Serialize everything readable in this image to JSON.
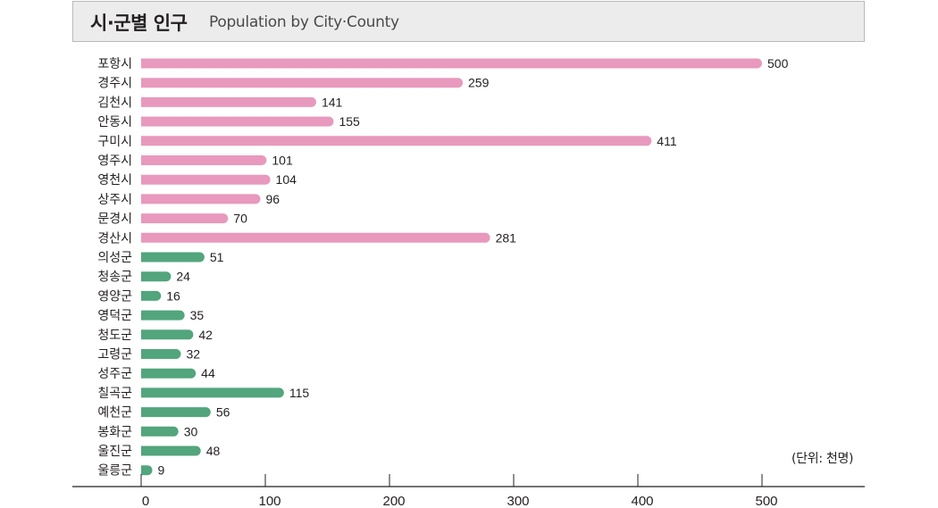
{
  "title": {
    "main": "시·군별 인구",
    "sub": "Population by City·County"
  },
  "unit_note": "(단위: 천명)",
  "colors": {
    "city": "#e899bd",
    "county": "#52a57c",
    "axis": "#231f20",
    "text": "#231f20"
  },
  "chart_data": {
    "type": "bar",
    "orientation": "horizontal",
    "categories": [
      "포항시",
      "경주시",
      "김천시",
      "안동시",
      "구미시",
      "영주시",
      "영천시",
      "상주시",
      "문경시",
      "경산시",
      "의성군",
      "청송군",
      "영양군",
      "영덕군",
      "청도군",
      "고령군",
      "성주군",
      "칠곡군",
      "예천군",
      "봉화군",
      "울진군",
      "울릉군"
    ],
    "values": [
      500,
      259,
      141,
      155,
      411,
      101,
      104,
      96,
      70,
      281,
      51,
      24,
      16,
      35,
      42,
      32,
      44,
      115,
      56,
      30,
      48,
      9
    ],
    "groups": [
      "city",
      "city",
      "city",
      "city",
      "city",
      "city",
      "city",
      "city",
      "city",
      "city",
      "county",
      "county",
      "county",
      "county",
      "county",
      "county",
      "county",
      "county",
      "county",
      "county",
      "county",
      "county"
    ],
    "xlim": [
      0,
      500
    ],
    "xticks": [
      0,
      100,
      200,
      300,
      400,
      500
    ],
    "grid": false,
    "data_labels": true
  }
}
